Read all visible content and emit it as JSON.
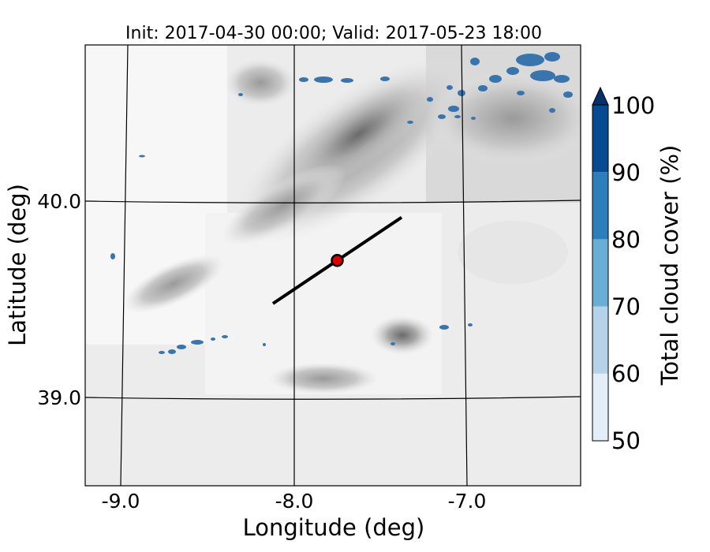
{
  "chart_data": {
    "type": "heatmap",
    "title": "Init: 2017-04-30 00:00; Valid: 2017-05-23 18:00",
    "xlabel": "Longitude (deg)",
    "ylabel": "Latitude (deg)",
    "xlim": [
      -9.2,
      -6.35
    ],
    "ylim": [
      38.55,
      40.8
    ],
    "x_ticks": [
      {
        "value": -9.0,
        "label": "-9.0"
      },
      {
        "value": -8.0,
        "label": "-8.0"
      },
      {
        "value": -7.0,
        "label": "-7.0"
      }
    ],
    "y_ticks": [
      {
        "value": 40.0,
        "label": "40.0"
      },
      {
        "value": 39.0,
        "label": "39.0"
      }
    ],
    "grid": true,
    "background": "grayscale terrain elevation contours",
    "colorbar": {
      "label": "Total cloud cover (%)",
      "levels": [
        50,
        60,
        70,
        80,
        90,
        100
      ],
      "tick_labels": [
        "50",
        "60",
        "70",
        "80",
        "90",
        "100"
      ],
      "colors": [
        "#e3eef8",
        "#b4d3e9",
        "#6aaed6",
        "#2e7ebc",
        "#084a91"
      ],
      "extend": "max",
      "extend_color": "#08306b"
    },
    "cross_section_line": {
      "start": {
        "lon": -8.12,
        "lat": 39.48
      },
      "end": {
        "lon": -7.38,
        "lat": 39.92
      },
      "color": "#000000"
    },
    "center_point": {
      "lon": -7.75,
      "lat": 39.7,
      "color": "#e00000",
      "edge_color": "#000000"
    },
    "cloud_color": "#3a74ad"
  }
}
